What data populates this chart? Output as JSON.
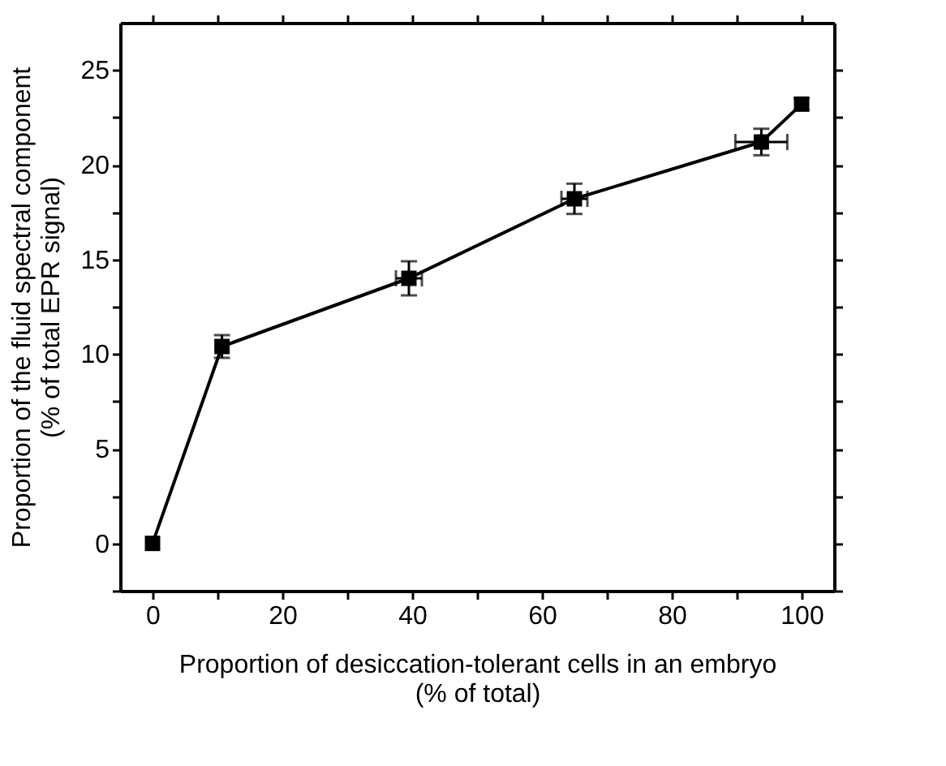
{
  "chart_data": {
    "type": "line",
    "xlabel": "Proportion of desiccation-tolerant cells in an embryo\n(% of total)",
    "ylabel": "Proportion of the fluid spectral component\n(% of total EPR signal)",
    "x": [
      0,
      10.7,
      39.5,
      65.0,
      93.8,
      100
    ],
    "series": [
      {
        "color": "#000000",
        "values": [
          0,
          10.4,
          14.0,
          18.2,
          21.2,
          23.2
        ],
        "errors": [
          null,
          0.6,
          0.9,
          0.8,
          0.7,
          0.3
        ],
        "xerrors": [
          null,
          null,
          2,
          2,
          4,
          null
        ]
      }
    ],
    "marker": "square",
    "line_style": "solid",
    "grid": false,
    "xlim": [
      -5,
      105
    ],
    "ylim": [
      -2.5,
      27.5
    ],
    "xticks": [
      0,
      {
        "value": 10,
        "label": null
      },
      20,
      {
        "value": 30,
        "label": null
      },
      40,
      {
        "value": 50,
        "label": null
      },
      60,
      {
        "value": 70,
        "label": null
      },
      80,
      {
        "value": 90,
        "label": null
      },
      100
    ],
    "yticks": [
      {
        "value": -2.5,
        "label": null
      },
      0,
      {
        "value": 2.5,
        "label": null
      },
      5,
      {
        "value": 7.5,
        "label": null
      },
      10,
      {
        "value": 12.5,
        "label": null
      },
      15,
      {
        "value": 17.5,
        "label": null
      },
      20,
      {
        "value": 22.5,
        "label": null
      },
      25
    ]
  }
}
